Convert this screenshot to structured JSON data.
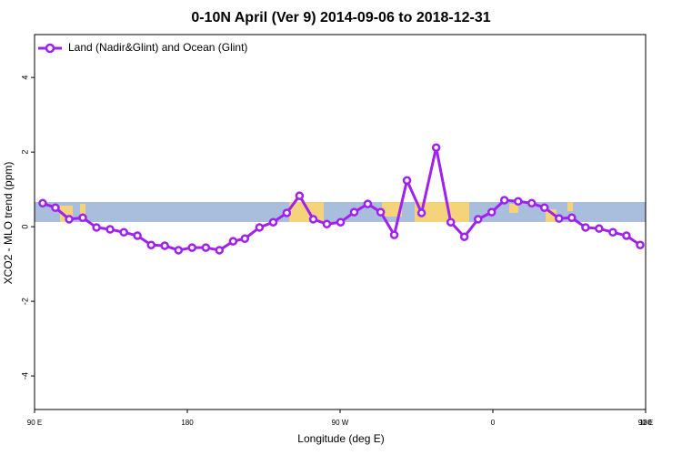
{
  "chart_data": {
    "type": "line",
    "title": "0-10N April (Ver 9)   2014-09-06 to 2018-12-31",
    "x_label": "Longitude (deg E)",
    "y_label": "XCO2 - MLO trend (ppm)",
    "xlim": [
      90,
      450
    ],
    "ylim": [
      -4.9,
      5.15
    ],
    "xticks": [
      {
        "value": 90,
        "label": "90 E"
      },
      {
        "value": 180,
        "label": "180"
      },
      {
        "value": 270,
        "label": "90 W"
      },
      {
        "value": 360,
        "label": "0"
      },
      {
        "value": 450,
        "label": "90 E"
      },
      {
        "value": 540,
        "label": "180"
      }
    ],
    "yticks": [
      -4,
      -2,
      0,
      2,
      4
    ],
    "legend": "top-left",
    "series": [
      {
        "name": "Land (Nadir&Glint) and Ocean (Glint)",
        "color": "#a020f0",
        "x": [
          94.8,
          102.3,
          110.4,
          118.4,
          126.5,
          134.5,
          142.6,
          150.6,
          158.7,
          166.7,
          174.8,
          182.8,
          190.9,
          198.9,
          207,
          213.9,
          222.5,
          230.6,
          238.6,
          246.1,
          254.2,
          262.2,
          270.3,
          278.3,
          286.3,
          293.9,
          301.9,
          309.4,
          318,
          326.6,
          335.2,
          343.2,
          351.3,
          359.3,
          366.8,
          374.9,
          382.9,
          390.4,
          399,
          406.5,
          414.6,
          422.6,
          430.7,
          438.7,
          446.8
        ],
        "values": [
          0.63,
          0.51,
          0.2,
          0.24,
          -0.02,
          -0.07,
          -0.15,
          -0.24,
          -0.49,
          -0.51,
          -0.63,
          -0.56,
          -0.56,
          -0.63,
          -0.39,
          -0.32,
          -0.02,
          0.12,
          0.37,
          0.83,
          0.2,
          0.07,
          0.12,
          0.39,
          0.61,
          0.39,
          -0.22,
          1.24,
          0.37,
          2.12,
          0.12,
          -0.27,
          0.2,
          0.39,
          0.71,
          0.68,
          0.63,
          0.51,
          0.22,
          0.24,
          -0.02,
          -0.05,
          -0.15,
          -0.24,
          -0.49
        ]
      }
    ]
  }
}
